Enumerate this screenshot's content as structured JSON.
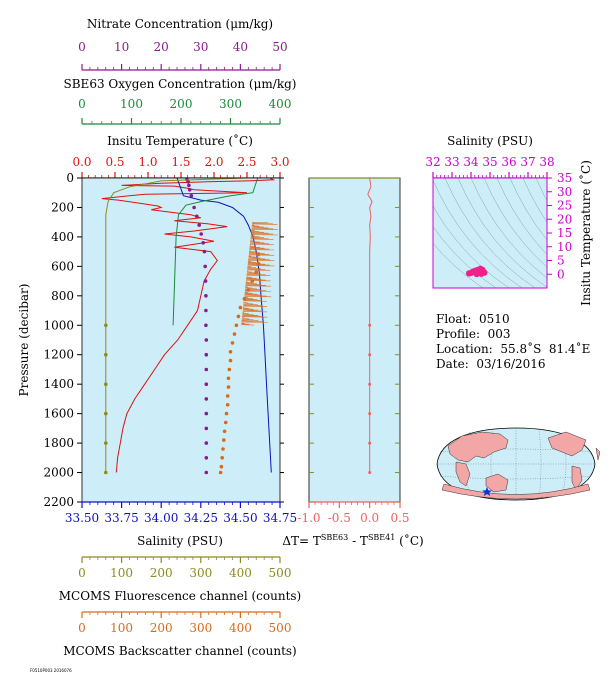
{
  "colors": {
    "nitrate": "#8b1a8b",
    "oxygen": "#1a8a3a",
    "temperature": "#e01010",
    "salinity": "#1010c0",
    "fluorescence": "#8c8c1a",
    "backscatter": "#d86a1a",
    "delta_t": "#ee6060",
    "magenta": "#cc00cc",
    "panel_bg": "#cdeef8",
    "land": "#f2a6a6",
    "ocean": "#cdeef8"
  },
  "axes": {
    "nitrate": {
      "label": "Nitrate Concentration (μm/kg)",
      "ticks": [
        "0",
        "10",
        "20",
        "30",
        "40",
        "50"
      ]
    },
    "oxygen": {
      "label": "SBE63 Oxygen Concentration (μm/kg)",
      "ticks": [
        "0",
        "100",
        "200",
        "300",
        "400"
      ]
    },
    "temperature": {
      "label": "Insitu Temperature (˚C)",
      "ticks": [
        "0.0",
        "0.5",
        "1.0",
        "1.5",
        "2.0",
        "2.5",
        "3.0"
      ]
    },
    "pressure": {
      "label": "Pressure (decibar)",
      "ticks": [
        "0",
        "200",
        "400",
        "600",
        "800",
        "1000",
        "1200",
        "1400",
        "1600",
        "1800",
        "2000",
        "2200"
      ]
    },
    "salinity": {
      "label": "Salinity (PSU)",
      "ticks": [
        "33.50",
        "33.75",
        "34.00",
        "34.25",
        "34.50",
        "34.75"
      ]
    },
    "fluorescence": {
      "label": "MCOMS Fluorescence channel (counts)",
      "ticks": [
        "0",
        "100",
        "200",
        "300",
        "400",
        "500"
      ]
    },
    "backscatter": {
      "label": "MCOMS Backscatter channel (counts)",
      "ticks": [
        "0",
        "100",
        "200",
        "300",
        "400",
        "500"
      ]
    },
    "delta_t": {
      "label_main": "ΔT= T",
      "label_sup1": "SBE63",
      "label_mid": " - T",
      "label_sup2": "SBE41",
      "label_end": " (˚C)",
      "ticks": [
        "-1.0",
        "-0.5",
        "0.0",
        "0.5"
      ]
    },
    "ts_salinity": {
      "label": "Salinity (PSU)",
      "ticks": [
        "32",
        "33",
        "34",
        "35",
        "36",
        "37",
        "38"
      ]
    },
    "ts_temperature": {
      "label": "Insitu Temperature (˚C)",
      "ticks": [
        "0",
        "5",
        "10",
        "15",
        "20",
        "25",
        "30",
        "35"
      ]
    }
  },
  "info": {
    "float": "Float:  0510",
    "profile": "Profile:  003",
    "location": "Location:  55.8˚S  81.4˚E",
    "date": "Date:  03/16/2016"
  },
  "footer_code": "F0510P003 2016076",
  "chart_data": {
    "type": "line",
    "title": "",
    "ylabel": "Pressure (decibar)",
    "ylim": [
      2200,
      0
    ],
    "series": [
      {
        "name": "Insitu Temperature (˚C)",
        "kind": "line",
        "scale": "temperature",
        "xlim": [
          0,
          3
        ],
        "points": [
          [
            2.85,
            0
          ],
          [
            2.9,
            12
          ],
          [
            2.5,
            20
          ],
          [
            1.9,
            25
          ],
          [
            1.2,
            35
          ],
          [
            0.6,
            50
          ],
          [
            1.4,
            55
          ],
          [
            1.6,
            70
          ],
          [
            1.7,
            80
          ],
          [
            2.5,
            100
          ],
          [
            0.95,
            110
          ],
          [
            0.3,
            140
          ],
          [
            0.55,
            150
          ],
          [
            0.85,
            170
          ],
          [
            1.15,
            190
          ],
          [
            1.2,
            200
          ],
          [
            1.05,
            215
          ],
          [
            1.3,
            230
          ],
          [
            1.65,
            250
          ],
          [
            1.8,
            270
          ],
          [
            1.4,
            290
          ],
          [
            1.9,
            310
          ],
          [
            2.2,
            330
          ],
          [
            1.7,
            360
          ],
          [
            1.25,
            380
          ],
          [
            1.65,
            400
          ],
          [
            2.0,
            430
          ],
          [
            1.4,
            470
          ],
          [
            1.95,
            500
          ],
          [
            2.05,
            560
          ],
          [
            1.95,
            620
          ],
          [
            1.85,
            700
          ],
          [
            1.8,
            800
          ],
          [
            1.75,
            900
          ],
          [
            1.6,
            1000
          ],
          [
            1.45,
            1100
          ],
          [
            1.25,
            1200
          ],
          [
            1.1,
            1300
          ],
          [
            0.95,
            1400
          ],
          [
            0.8,
            1500
          ],
          [
            0.68,
            1600
          ],
          [
            0.62,
            1700
          ],
          [
            0.58,
            1800
          ],
          [
            0.54,
            1900
          ],
          [
            0.52,
            2000
          ]
        ]
      },
      {
        "name": "Salinity (PSU)",
        "kind": "line",
        "scale": "salinity",
        "xlim": [
          33.5,
          34.75
        ],
        "points": [
          [
            34.1,
            0
          ],
          [
            34.12,
            60
          ],
          [
            34.14,
            120
          ],
          [
            34.25,
            150
          ],
          [
            34.36,
            165
          ],
          [
            34.45,
            200
          ],
          [
            34.52,
            260
          ],
          [
            34.55,
            320
          ],
          [
            34.58,
            400
          ],
          [
            34.6,
            500
          ],
          [
            34.62,
            650
          ],
          [
            34.63,
            800
          ],
          [
            34.645,
            1000
          ],
          [
            34.655,
            1200
          ],
          [
            34.665,
            1400
          ],
          [
            34.675,
            1600
          ],
          [
            34.685,
            1800
          ],
          [
            34.695,
            2000
          ]
        ]
      },
      {
        "name": "SBE63 Oxygen Concentration (μm/kg)",
        "kind": "line",
        "scale": "oxygen",
        "xlim": [
          0,
          400
        ],
        "points": [
          [
            355,
            0
          ],
          [
            345,
            100
          ],
          [
            300,
            120
          ],
          [
            270,
            140
          ],
          [
            240,
            160
          ],
          [
            210,
            185
          ],
          [
            195,
            250
          ],
          [
            190,
            400
          ],
          [
            188,
            600
          ],
          [
            186,
            800
          ],
          [
            184,
            1000
          ]
        ]
      },
      {
        "name": "Nitrate Concentration (μm/kg)",
        "kind": "dots",
        "scale": "nitrate",
        "xlim": [
          0,
          50
        ],
        "points": [
          [
            26.5,
            10
          ],
          [
            26.8,
            25
          ],
          [
            27.0,
            50
          ],
          [
            27.2,
            80
          ],
          [
            27.6,
            120
          ],
          [
            28.3,
            200
          ],
          [
            29.0,
            260
          ],
          [
            29.6,
            320
          ],
          [
            30.1,
            380
          ],
          [
            30.6,
            440
          ],
          [
            30.9,
            500
          ],
          [
            31.1,
            600
          ],
          [
            31.2,
            700
          ],
          [
            31.3,
            800
          ],
          [
            31.3,
            900
          ],
          [
            31.3,
            1000
          ],
          [
            31.4,
            1100
          ],
          [
            31.4,
            1200
          ],
          [
            31.4,
            1300
          ],
          [
            31.4,
            1400
          ],
          [
            31.4,
            1500
          ],
          [
            31.4,
            1600
          ],
          [
            31.4,
            1700
          ],
          [
            31.4,
            1800
          ],
          [
            31.4,
            1900
          ],
          [
            31.4,
            2000
          ]
        ]
      },
      {
        "name": "MCOMS Fluorescence channel (counts)",
        "kind": "line+dots",
        "scale": "fluorescence",
        "xlim": [
          0,
          500
        ],
        "points": [
          [
            410,
            0
          ],
          [
            200,
            20
          ],
          [
            120,
            60
          ],
          [
            80,
            100
          ],
          [
            66,
            160
          ],
          [
            60,
            250
          ],
          [
            60,
            400
          ],
          [
            60,
            600
          ],
          [
            60,
            800
          ],
          [
            60,
            1000
          ],
          [
            60,
            1200
          ],
          [
            60,
            1400
          ],
          [
            60,
            1600
          ],
          [
            60,
            1800
          ],
          [
            60,
            2000
          ]
        ],
        "dots_from": 1000
      },
      {
        "name": "MCOMS Backscatter channel (counts)",
        "kind": "dots",
        "scale": "backscatter",
        "xlim": [
          0,
          500
        ],
        "points": [
          [
            445,
            520
          ],
          [
            445,
            580
          ],
          [
            440,
            640
          ],
          [
            430,
            700
          ],
          [
            420,
            760
          ],
          [
            410,
            820
          ],
          [
            400,
            880
          ],
          [
            395,
            940
          ],
          [
            390,
            1000
          ],
          [
            385,
            1060
          ],
          [
            380,
            1120
          ],
          [
            375,
            1180
          ],
          [
            375,
            1240
          ],
          [
            372,
            1300
          ],
          [
            370,
            1360
          ],
          [
            370,
            1420
          ],
          [
            368,
            1480
          ],
          [
            368,
            1540
          ],
          [
            365,
            1600
          ],
          [
            363,
            1660
          ],
          [
            360,
            1720
          ],
          [
            358,
            1780
          ],
          [
            356,
            1840
          ],
          [
            354,
            1900
          ],
          [
            352,
            1960
          ],
          [
            350,
            2000
          ]
        ]
      },
      {
        "name": "ΔT= T SBE63 - T SBE41 (˚C)",
        "kind": "line+dots",
        "scale": "delta_t",
        "xlim": [
          -1.0,
          0.5
        ],
        "points": [
          [
            0.0,
            0
          ],
          [
            0.02,
            60
          ],
          [
            -0.03,
            110
          ],
          [
            0.04,
            160
          ],
          [
            0.0,
            200
          ],
          [
            0.02,
            260
          ],
          [
            0.0,
            320
          ],
          [
            0.01,
            400
          ],
          [
            0.0,
            500
          ],
          [
            0.0,
            600
          ],
          [
            0.0,
            800
          ],
          [
            0.0,
            1000
          ],
          [
            0.0,
            1200
          ],
          [
            0.0,
            1400
          ],
          [
            0.0,
            1600
          ],
          [
            0.0,
            1800
          ],
          [
            0.0,
            2000
          ]
        ],
        "dots_from": 1000
      },
      {
        "name": "T-S",
        "kind": "dots",
        "scale": "ts",
        "xlim": [
          32,
          38
        ],
        "ylim": [
          -5,
          35
        ],
        "points": [
          [
            33.9,
            0.3
          ],
          [
            34.0,
            0.5
          ],
          [
            34.1,
            0.9
          ],
          [
            34.2,
            1.2
          ],
          [
            34.35,
            1.6
          ],
          [
            34.5,
            2.0
          ],
          [
            34.6,
            1.6
          ],
          [
            34.65,
            1.0
          ],
          [
            34.7,
            0.6
          ],
          [
            34.55,
            0.2
          ],
          [
            34.3,
            0.1
          ]
        ]
      }
    ]
  }
}
